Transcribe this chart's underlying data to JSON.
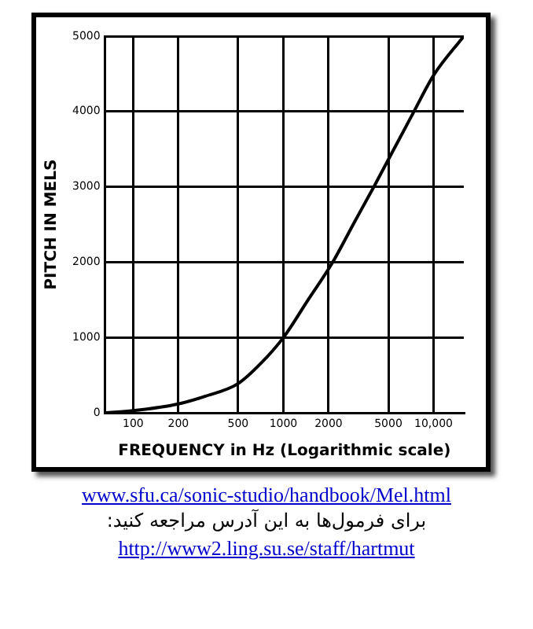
{
  "chart_data": {
    "type": "line",
    "xlabel": "FREQUENCY in Hz (Logarithmic scale)",
    "ylabel": "PITCH IN MELS",
    "x": [
      65,
      100,
      200,
      300,
      500,
      710,
      1000,
      1450,
      2130,
      2950,
      4000,
      7400,
      10000,
      15900
    ],
    "series": [
      {
        "color": "#000000",
        "values": [
          0,
          30,
          120,
          220,
          390,
          660,
          1000,
          1490,
          2000,
          2520,
          3000,
          4000,
          4480,
          5000
        ]
      }
    ],
    "log": "x",
    "xlim": [
      65,
      15900
    ],
    "xticks": [
      100,
      200,
      500,
      1000,
      2000,
      5000,
      {
        "value": 10000,
        "label": "10,000"
      }
    ],
    "ylim": [
      0,
      5000
    ],
    "yticks": [
      0,
      1000,
      2000,
      3000,
      4000,
      5000
    ],
    "grid": true,
    "legend": false,
    "marker": "none",
    "line_style": "solid",
    "annotations": [
      "www.sfu.ca/sonic-studio/handbook/Mel.html",
      "برای فرمول‌ها به این آدرس مراجعه کنید:",
      "http://www2.ling.su.se/staff/hartmut"
    ]
  }
}
